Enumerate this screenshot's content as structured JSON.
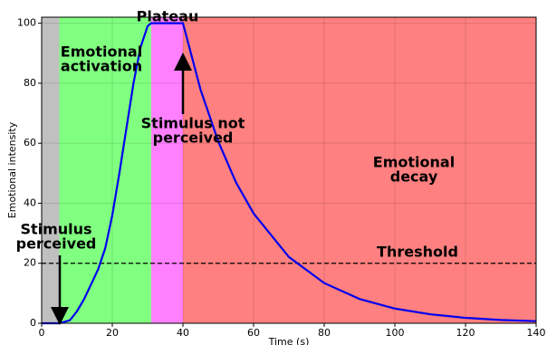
{
  "chart_data": {
    "type": "line",
    "x_label": "Time (s)",
    "y_label": "Emotional intensity",
    "x": [
      0,
      5,
      8,
      10,
      12,
      14,
      16,
      18,
      20,
      22,
      24,
      26,
      28,
      30,
      31,
      40,
      45,
      50,
      55,
      60,
      70,
      80,
      90,
      100,
      110,
      120,
      130,
      140
    ],
    "values": [
      0,
      0,
      1,
      4,
      8,
      13,
      18,
      25,
      36,
      50,
      65,
      80,
      92,
      99,
      100,
      100,
      77.8,
      60.6,
      47,
      36.6,
      22.1,
      13.4,
      8.1,
      4.9,
      3,
      1.8,
      1.1,
      0.7
    ],
    "color": "#0000ee",
    "xlim": [
      0,
      140
    ],
    "ylim": [
      0,
      102
    ],
    "xticks": [
      0,
      20,
      40,
      60,
      80,
      100,
      120,
      140
    ],
    "yticks": [
      0,
      20,
      40,
      60,
      80,
      100
    ],
    "grid": true,
    "regions": [
      {
        "start": 0,
        "end": 5,
        "color": "#c0c0c0"
      },
      {
        "start": 5,
        "end": 31,
        "color": "#80ff80"
      },
      {
        "start": 31,
        "end": 40,
        "color": "#ff80ff"
      },
      {
        "start": 40,
        "end": 140,
        "color": "#ff8080"
      }
    ],
    "threshold": 20,
    "annotations": [
      {
        "lines": [
          "Plateau"
        ]
      },
      {
        "lines": [
          "Emotional",
          "activation"
        ]
      },
      {
        "lines": [
          "Stimulus not",
          "perceived"
        ]
      },
      {
        "lines": [
          "Emotional",
          "decay"
        ]
      },
      {
        "lines": [
          "Stimulus",
          "perceived"
        ]
      },
      {
        "lines": [
          "Threshold"
        ]
      }
    ]
  }
}
